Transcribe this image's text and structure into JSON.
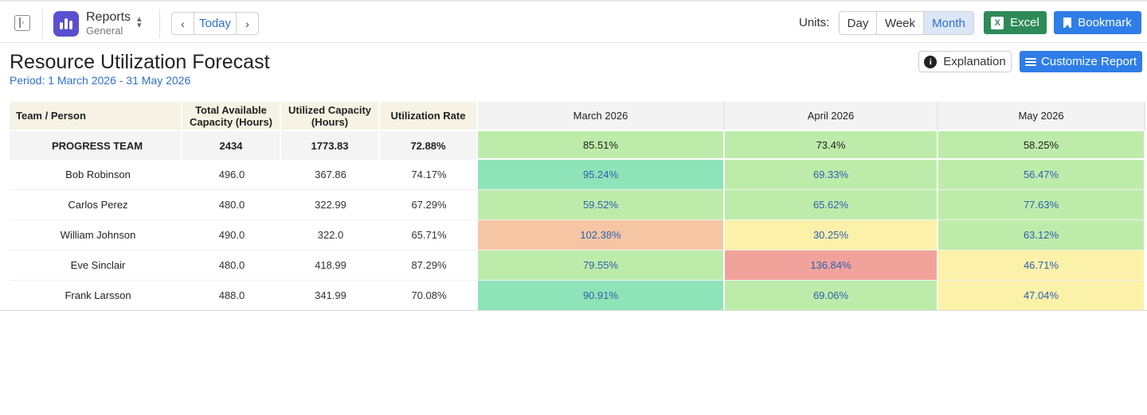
{
  "app": {
    "title": "Reports",
    "subtitle": "General"
  },
  "nav": {
    "today_label": "Today",
    "prev_icon": "chevron-left-icon",
    "next_icon": "chevron-right-icon"
  },
  "units": {
    "label": "Units:",
    "options": [
      "Day",
      "Week",
      "Month"
    ],
    "selected": "Month"
  },
  "toolbar": {
    "excel_label": "Excel",
    "bookmark_label": "Bookmark",
    "explanation_label": "Explanation",
    "customize_label": "Customize Report"
  },
  "colors": {
    "accent": "#2f7de8",
    "excel_green": "#2e8a57",
    "app_icon": "#5a4fcf",
    "heat_high": "#f6c6a4",
    "heat_over": "#f1a39b",
    "heat_ok": "#bdecaa",
    "heat_optimal": "#8fe3b8",
    "heat_low": "#fbf1a9"
  },
  "report": {
    "title": "Resource Utilization Forecast",
    "period": "Period: 1 March 2026 - 31 May 2026",
    "columns": {
      "name": "Team / Person",
      "total": "Total Available Capacity (Hours)",
      "utilized": "Utilized Capacity (Hours)",
      "rate": "Utilization Rate",
      "months": [
        "March 2026",
        "April 2026",
        "May 2026"
      ]
    },
    "team": {
      "name": "PROGRESS TEAM",
      "total": "2434",
      "utilized": "1773.83",
      "rate": "72.88%",
      "months": [
        "85.51%",
        "73.4%",
        "58.25%"
      ],
      "month_colors": [
        "#bdecaa",
        "#bdecaa",
        "#bdecaa"
      ]
    },
    "people": [
      {
        "name": "Bob Robinson",
        "total": "496.0",
        "utilized": "367.86",
        "rate": "74.17%",
        "months": [
          "95.24%",
          "69.33%",
          "56.47%"
        ],
        "month_colors": [
          "#8fe3b8",
          "#bdecaa",
          "#bdecaa"
        ]
      },
      {
        "name": "Carlos Perez",
        "total": "480.0",
        "utilized": "322.99",
        "rate": "67.29%",
        "months": [
          "59.52%",
          "65.62%",
          "77.63%"
        ],
        "month_colors": [
          "#bdecaa",
          "#bdecaa",
          "#bdecaa"
        ]
      },
      {
        "name": "William Johnson",
        "total": "490.0",
        "utilized": "322.0",
        "rate": "65.71%",
        "months": [
          "102.38%",
          "30.25%",
          "63.12%"
        ],
        "month_colors": [
          "#f6c6a4",
          "#fbf1a9",
          "#bdecaa"
        ]
      },
      {
        "name": "Eve Sinclair",
        "total": "480.0",
        "utilized": "418.99",
        "rate": "87.29%",
        "months": [
          "79.55%",
          "136.84%",
          "46.71%"
        ],
        "month_colors": [
          "#bdecaa",
          "#f1a39b",
          "#fbf1a9"
        ]
      },
      {
        "name": "Frank Larsson",
        "total": "488.0",
        "utilized": "341.99",
        "rate": "70.08%",
        "months": [
          "90.91%",
          "69.06%",
          "47.04%"
        ],
        "month_colors": [
          "#8fe3b8",
          "#bdecaa",
          "#fbf1a9"
        ]
      }
    ]
  }
}
